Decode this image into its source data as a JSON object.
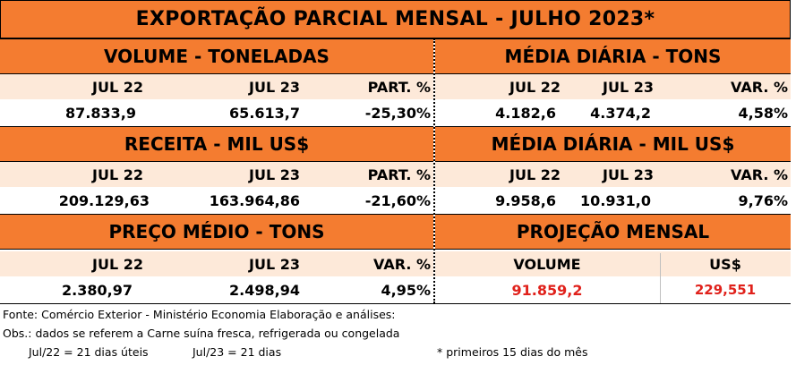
{
  "title": "EXPORTAÇÃO PARCIAL MENSAL  - JULHO 2023*",
  "volume": {
    "heading": "VOLUME - TONELADAS",
    "cols": [
      "JUL 22",
      "JUL 23",
      "PART. %"
    ],
    "values": [
      "87.833,9",
      "65.613,7",
      "-25,30%"
    ]
  },
  "media_tons": {
    "heading": "MÉDIA DIÁRIA - TONS",
    "cols": [
      "JUL 22",
      "JUL 23",
      "VAR. %"
    ],
    "values": [
      "4.182,6",
      "4.374,2",
      "4,58%"
    ]
  },
  "receita": {
    "heading": "RECEITA - MIL US$",
    "cols": [
      "JUL 22",
      "JUL 23",
      "PART. %"
    ],
    "values": [
      "209.129,63",
      "163.964,86",
      "-21,60%"
    ]
  },
  "media_usd": {
    "heading": "MÉDIA DIÁRIA - MIL US$",
    "cols": [
      "JUL 22",
      "JUL 23",
      "VAR. %"
    ],
    "values": [
      "9.958,6",
      "10.931,0",
      "9,76%"
    ]
  },
  "preco": {
    "heading": "PREÇO MÉDIO - TONS",
    "cols": [
      "JUL 22",
      "JUL 23",
      "VAR. %"
    ],
    "values": [
      "2.380,97",
      "2.498,94",
      "4,95%"
    ]
  },
  "projecao": {
    "heading": "PROJEÇÃO  MENSAL",
    "cols": [
      "VOLUME",
      "US$"
    ],
    "values": [
      "91.859,2",
      "229,551"
    ]
  },
  "footer": {
    "fonte": "Fonte: Comércio Exterior - Ministério Economia    Elaboração e análises:",
    "obs": "Obs.: dados se referem a Carne suína fresca, refrigerada ou congelada",
    "dias_22": "Jul/22 = 21 dias úteis",
    "dias_23": "Jul/23 = 21 dias",
    "nota": "* primeiros 15 dias do mês"
  },
  "colors": {
    "orange": "#f47c30",
    "light": "#fde9d9",
    "red": "#e0211b"
  }
}
